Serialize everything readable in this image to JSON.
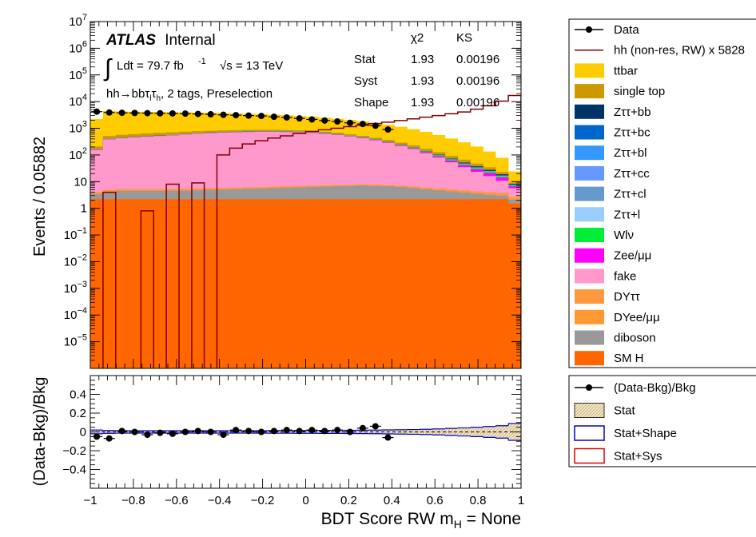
{
  "chart_data": [
    {
      "type": "bar",
      "stacked": true,
      "log_y": true,
      "ylabel": "Events / 0.05882",
      "xlim": [
        -1,
        1
      ],
      "ylim": [
        1e-06,
        10000000.0
      ],
      "x_edges": [
        -1.0,
        -0.941,
        -0.882,
        -0.824,
        -0.765,
        -0.706,
        -0.647,
        -0.588,
        -0.529,
        -0.471,
        -0.412,
        -0.353,
        -0.294,
        -0.235,
        -0.176,
        -0.118,
        -0.059,
        0.0,
        0.059,
        0.118,
        0.176,
        0.235,
        0.294,
        0.353,
        0.412,
        0.471,
        0.529,
        0.588,
        0.647,
        0.706,
        0.765,
        0.824,
        0.882,
        0.941,
        1.0
      ],
      "y_tick_labels": [
        "10^-5",
        "10^-4",
        "10^-3",
        "10^-2",
        "10^-1",
        "1",
        "10",
        "10^2",
        "10^3",
        "10^4",
        "10^5",
        "10^6",
        "10^7"
      ],
      "x_tick_labels": [
        "−1",
        "−0.8",
        "−0.6",
        "−0.4",
        "−0.2",
        "0",
        "0.2",
        "0.4",
        "0.6",
        "0.8",
        "1"
      ],
      "stack_series": [
        {
          "name": "SM H",
          "color": "#ff6600",
          "values": [
            2.2,
            2.2,
            2.2,
            2.2,
            2.2,
            2.2,
            2.2,
            2.2,
            2.2,
            2.2,
            2.2,
            2.2,
            2.2,
            2.2,
            2.2,
            2.2,
            2.2,
            2.2,
            2.2,
            2.2,
            2.2,
            2.2,
            2.2,
            2.2,
            2.2,
            2.2,
            2.2,
            2.2,
            2.2,
            2.2,
            2.2,
            2.2,
            2.2,
            1.5
          ]
        },
        {
          "name": "diboson",
          "color": "#999999",
          "values": [
            1.3,
            1.9,
            2.3,
            2.3,
            2.3,
            2.3,
            2.4,
            2.4,
            2.6,
            2.8,
            2.9,
            3.0,
            3.2,
            3.3,
            3.5,
            3.7,
            3.9,
            4.1,
            4.3,
            4.5,
            4.7,
            4.9,
            4.7,
            4.5,
            4.1,
            3.6,
            3.0,
            2.5,
            2.1,
            1.7,
            1.3,
            1.0,
            0.8,
            0.6
          ]
        },
        {
          "name": "DYee/μμ",
          "color": "#ff9933",
          "values": [
            0.2,
            0.3,
            0.3,
            0.3,
            0.3,
            0.3,
            0.3,
            0.3,
            0.3,
            0.3,
            0.3,
            0.3,
            0.3,
            0.3,
            0.3,
            0.3,
            0.3,
            0.3,
            0.3,
            0.3,
            0.3,
            0.3,
            0.3,
            0.3,
            0.3,
            0.3,
            0.3,
            0.3,
            0.3,
            0.3,
            0.3,
            0.3,
            0.3,
            0.2
          ]
        },
        {
          "name": "DYττ",
          "color": "#ff9940",
          "values": [
            0.4,
            0.5,
            0.5,
            0.5,
            0.5,
            0.5,
            0.5,
            0.5,
            0.5,
            0.5,
            0.5,
            0.5,
            0.5,
            0.5,
            0.5,
            0.5,
            0.5,
            0.5,
            0.5,
            0.5,
            0.5,
            0.5,
            0.5,
            0.5,
            0.5,
            0.5,
            0.5,
            0.5,
            0.5,
            0.5,
            0.5,
            0.5,
            0.5,
            0.4
          ]
        },
        {
          "name": "fake",
          "color": "#ff99cc",
          "values": [
            150,
            380,
            420,
            450,
            480,
            510,
            540,
            580,
            620,
            650,
            680,
            700,
            720,
            730,
            730,
            720,
            700,
            660,
            620,
            560,
            490,
            420,
            350,
            280,
            210,
            160,
            110,
            75,
            48,
            30,
            19,
            12,
            7,
            3
          ]
        },
        {
          "name": "Zee/μμ",
          "color": "#ff00ff",
          "values": [
            5,
            8,
            9,
            10,
            11,
            12,
            13,
            14,
            15,
            16,
            17,
            18,
            19,
            20,
            20,
            20,
            20,
            19,
            18,
            17,
            16,
            15,
            14,
            13,
            12,
            11,
            10,
            9,
            8,
            7,
            6,
            5,
            3.5,
            1
          ]
        },
        {
          "name": "Wlν",
          "color": "#00ee33",
          "values": [
            3,
            5,
            6,
            7,
            8,
            9,
            10,
            11,
            12,
            13,
            14,
            15,
            16,
            17,
            17,
            17,
            17,
            16,
            15,
            14,
            13,
            12,
            11,
            10,
            9,
            8,
            7,
            6,
            5,
            4,
            3.2,
            2.4,
            1.5,
            0.5
          ]
        },
        {
          "name": "Zττ+l",
          "color": "#99ccff",
          "values": [
            0.5,
            0.8,
            0.9,
            1,
            1,
            1,
            1.1,
            1.2,
            1.3,
            1.4,
            1.5,
            1.6,
            1.7,
            1.8,
            1.8,
            1.8,
            1.8,
            1.8,
            1.7,
            1.6,
            1.5,
            1.4,
            1.3,
            1.2,
            1.1,
            1,
            0.9,
            0.8,
            0.7,
            0.6,
            0.5,
            0.4,
            0.3,
            0.1
          ]
        },
        {
          "name": "Zττ+cl",
          "color": "#6699cc",
          "values": [
            0.5,
            0.8,
            0.9,
            1,
            1,
            1,
            1.1,
            1.2,
            1.3,
            1.4,
            1.5,
            1.6,
            1.7,
            1.8,
            1.8,
            1.8,
            1.8,
            1.8,
            1.7,
            1.6,
            1.5,
            1.4,
            1.3,
            1.2,
            1.1,
            1,
            0.9,
            0.8,
            0.7,
            0.6,
            0.5,
            0.4,
            0.3,
            0.1
          ]
        },
        {
          "name": "Zττ+cc",
          "color": "#6699ff",
          "values": [
            0.5,
            0.8,
            0.9,
            1,
            1,
            1,
            1.1,
            1.2,
            1.3,
            1.4,
            1.5,
            1.6,
            1.7,
            1.8,
            1.8,
            1.8,
            1.8,
            1.8,
            1.7,
            1.6,
            1.5,
            1.4,
            1.3,
            1.2,
            1.1,
            1,
            0.9,
            0.8,
            0.7,
            0.6,
            0.5,
            0.4,
            0.3,
            0.1
          ]
        },
        {
          "name": "Zττ+bl",
          "color": "#3399ff",
          "values": [
            0.5,
            0.8,
            0.9,
            1,
            1,
            1,
            1.1,
            1.2,
            1.3,
            1.4,
            1.5,
            1.6,
            1.7,
            1.8,
            1.8,
            1.8,
            1.8,
            1.8,
            1.7,
            1.6,
            1.5,
            1.4,
            1.3,
            1.2,
            1.1,
            1,
            0.9,
            0.8,
            0.7,
            0.6,
            0.5,
            0.4,
            0.3,
            0.1
          ]
        },
        {
          "name": "Zττ+bc",
          "color": "#0066cc",
          "values": [
            0.5,
            0.8,
            0.9,
            1,
            1,
            1,
            1.1,
            1.2,
            1.3,
            1.4,
            1.5,
            1.6,
            1.7,
            1.8,
            1.8,
            1.8,
            1.8,
            1.8,
            1.7,
            1.6,
            1.5,
            1.4,
            1.3,
            1.2,
            1.1,
            1,
            0.9,
            0.8,
            0.7,
            0.6,
            0.5,
            0.4,
            0.3,
            0.1
          ]
        },
        {
          "name": "Zττ+bb",
          "color": "#003366",
          "values": [
            2,
            3,
            3,
            3,
            3,
            3,
            3,
            3,
            3,
            3,
            3,
            3,
            3,
            3,
            3,
            3,
            3,
            3,
            3,
            3,
            3,
            3,
            3,
            3,
            3,
            3,
            3,
            3,
            3,
            3,
            2.5,
            2,
            1.5,
            0.5
          ]
        },
        {
          "name": "single top",
          "color": "#cc9900",
          "values": [
            40,
            110,
            120,
            125,
            130,
            130,
            130,
            125,
            120,
            115,
            110,
            105,
            100,
            95,
            90,
            85,
            80,
            75,
            70,
            65,
            60,
            55,
            50,
            45,
            40,
            35,
            30,
            25,
            20,
            15,
            10,
            7,
            4,
            1
          ]
        },
        {
          "name": "ttbar",
          "color": "#ffcc00",
          "values": [
            2000,
            3900,
            3700,
            3600,
            3500,
            3400,
            3300,
            3200,
            3100,
            3000,
            2900,
            2750,
            2600,
            2500,
            2350,
            2200,
            2050,
            1900,
            1750,
            1600,
            1450,
            1300,
            1150,
            1000,
            850,
            700,
            560,
            430,
            320,
            230,
            160,
            100,
            55,
            15
          ]
        }
      ],
      "data_points": {
        "name": "Data",
        "x": [
          -0.97,
          -0.912,
          -0.853,
          -0.794,
          -0.735,
          -0.676,
          -0.618,
          -0.559,
          -0.5,
          -0.441,
          -0.382,
          -0.324,
          -0.265,
          -0.206,
          -0.147,
          -0.088,
          -0.029,
          0.029,
          0.088,
          0.147,
          0.206,
          0.265,
          0.324,
          0.382
        ],
        "y": [
          4200,
          3900,
          3800,
          3750,
          3700,
          3650,
          3600,
          3550,
          3450,
          3350,
          3200,
          3100,
          3000,
          2900,
          2700,
          2550,
          2350,
          2150,
          1950,
          1800,
          1600,
          1450,
          1250,
          900
        ]
      },
      "signal": {
        "name": "hh (non-res, RW) x 5828",
        "color": "#800000",
        "values": [
          0,
          4,
          0,
          0,
          0.8,
          0,
          8,
          0,
          9,
          0,
          100,
          180,
          260,
          340,
          430,
          520,
          640,
          760,
          880,
          1000,
          1150,
          1300,
          1500,
          1700,
          1950,
          2250,
          2600,
          3000,
          3500,
          4100,
          5200,
          7000,
          10500,
          17000
        ]
      },
      "annotations": {
        "atlas": "ATLAS",
        "internal": "Internal",
        "lumi_int": "∫",
        "lumi_text": "Ldt = 79.7 fb",
        "lumi_exp": "-1",
        "sqrt_s": "√s = 13 TeV",
        "channel_pre": "hh→bbτ",
        "channel_l": "l",
        "channel_mid": "τ",
        "channel_h": "h",
        "channel_post": ", 2 tags, Preselection"
      },
      "stats_table": {
        "headers": [
          "χ2",
          "KS"
        ],
        "rows": [
          {
            "label": "Stat",
            "chi2": "1.93",
            "ks": "0.00196"
          },
          {
            "label": "Syst",
            "chi2": "1.93",
            "ks": "0.00196"
          },
          {
            "label": "Shape",
            "chi2": "1.93",
            "ks": "0.00196"
          }
        ]
      },
      "legend": [
        {
          "label": "Data",
          "style": "marker"
        },
        {
          "label": "hh (non-res, RW) x 5828",
          "style": "line",
          "color": "#800000"
        },
        {
          "label": "ttbar",
          "style": "box",
          "color": "#ffcc00"
        },
        {
          "label": "single top",
          "style": "box",
          "color": "#cc9900"
        },
        {
          "label": "Zττ+bb",
          "style": "box",
          "color": "#003366"
        },
        {
          "label": "Zττ+bc",
          "style": "box",
          "color": "#0066cc"
        },
        {
          "label": "Zττ+bl",
          "style": "box",
          "color": "#3399ff"
        },
        {
          "label": "Zττ+cc",
          "style": "box",
          "color": "#6699ff"
        },
        {
          "label": "Zττ+cl",
          "style": "box",
          "color": "#6699cc"
        },
        {
          "label": "Zττ+l",
          "style": "box",
          "color": "#99ccff"
        },
        {
          "label": "Wlν",
          "style": "box",
          "color": "#00ee33"
        },
        {
          "label": "Zee/μμ",
          "style": "box",
          "color": "#ff00ff"
        },
        {
          "label": "fake",
          "style": "box",
          "color": "#ff99cc"
        },
        {
          "label": "DYττ",
          "style": "box",
          "color": "#ff9940"
        },
        {
          "label": "DYee/μμ",
          "style": "box",
          "color": "#ff9933"
        },
        {
          "label": "diboson",
          "style": "box",
          "color": "#999999"
        },
        {
          "label": "SM H",
          "style": "box",
          "color": "#ff6600"
        }
      ]
    },
    {
      "type": "scatter",
      "ylabel": "(Data-Bkg)/Bkg",
      "xlabel": "BDT Score RW m",
      "xlabel_sub": "H",
      "xlabel_post": " = None",
      "xlim": [
        -1,
        1
      ],
      "ylim": [
        -0.6,
        0.6
      ],
      "y_tick_labels": [
        "−0.4",
        "−0.2",
        "0",
        "0.2",
        "0.4"
      ],
      "x_tick_labels": [
        "−1",
        "−0.8",
        "−0.6",
        "−0.4",
        "−0.2",
        "0",
        "0.2",
        "0.4",
        "0.6",
        "0.8",
        "1"
      ],
      "ratio_points": {
        "x": [
          -0.97,
          -0.912,
          -0.853,
          -0.794,
          -0.735,
          -0.676,
          -0.618,
          -0.559,
          -0.5,
          -0.441,
          -0.382,
          -0.324,
          -0.265,
          -0.206,
          -0.147,
          -0.088,
          -0.029,
          0.029,
          0.088,
          0.147,
          0.206,
          0.265,
          0.324,
          0.382
        ],
        "y": [
          -0.05,
          -0.07,
          0.01,
          0.0,
          -0.03,
          -0.01,
          -0.02,
          0.0,
          0.01,
          0.0,
          -0.03,
          0.02,
          0.01,
          0.0,
          0.01,
          0.02,
          0.01,
          0.02,
          0.01,
          0.02,
          0.0,
          0.04,
          0.06,
          -0.06
        ]
      },
      "stat_band_halfwidth": [
        0.02,
        0.015,
        0.013,
        0.013,
        0.013,
        0.013,
        0.013,
        0.013,
        0.013,
        0.013,
        0.013,
        0.013,
        0.013,
        0.013,
        0.014,
        0.014,
        0.015,
        0.015,
        0.016,
        0.016,
        0.017,
        0.018,
        0.019,
        0.021,
        0.023,
        0.025,
        0.028,
        0.032,
        0.037,
        0.043,
        0.05,
        0.058,
        0.066,
        0.09
      ],
      "legend": [
        {
          "label": "(Data-Bkg)/Bkg",
          "style": "marker"
        },
        {
          "label": "Stat",
          "style": "hatched",
          "color": "#e8d8b0"
        },
        {
          "label": "Stat+Shape",
          "style": "outline",
          "color": "#0000cc"
        },
        {
          "label": "Stat+Sys",
          "style": "outline",
          "color": "#dd0000"
        }
      ]
    }
  ]
}
